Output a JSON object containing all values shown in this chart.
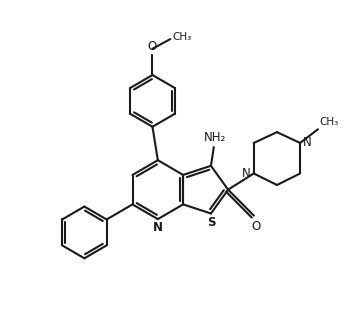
{
  "bg_color": "#ffffff",
  "line_color": "#1a1a1a",
  "line_width": 1.5,
  "figsize": [
    3.62,
    3.29
  ],
  "dpi": 100,
  "xlim": [
    0,
    10
  ],
  "ylim": [
    0,
    9
  ]
}
